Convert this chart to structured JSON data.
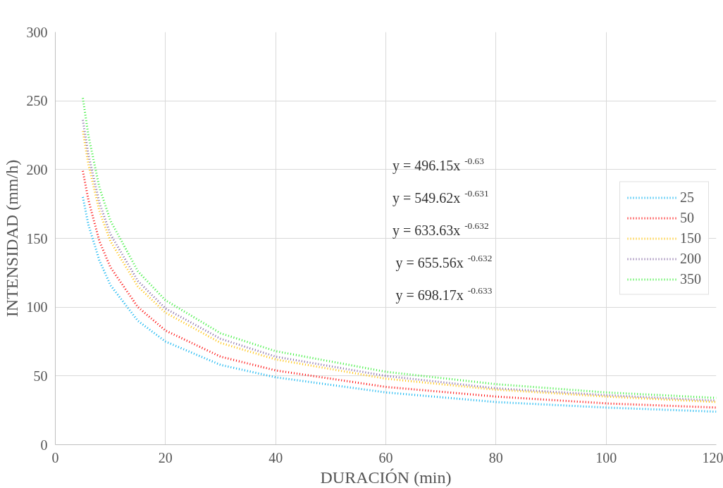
{
  "chart_data": {
    "type": "line",
    "xlabel": "DURACIÓN (min)",
    "ylabel": "INTENSIDAD (mm/h)",
    "x": [
      5,
      6,
      8,
      10,
      15,
      20,
      30,
      40,
      60,
      80,
      100,
      120
    ],
    "series": [
      {
        "name": "25",
        "color": "#00b0f0",
        "values": [
          180,
          160,
          134,
          116,
          90,
          75,
          58,
          49,
          38,
          31,
          27,
          24
        ]
      },
      {
        "name": "50",
        "color": "#ff0000",
        "values": [
          199,
          178,
          148,
          129,
          100,
          83,
          64,
          54,
          42,
          35,
          30,
          27
        ]
      },
      {
        "name": "150",
        "color": "#ffc000",
        "values": [
          228,
          204,
          170,
          148,
          115,
          96,
          74,
          62,
          48,
          40,
          35,
          31
        ]
      },
      {
        "name": "200",
        "color": "#8064a2",
        "values": [
          236,
          211,
          176,
          153,
          119,
          99,
          77,
          64,
          50,
          41,
          36,
          32
        ]
      },
      {
        "name": "350",
        "color": "#33ee33",
        "values": [
          252,
          225,
          187,
          163,
          126,
          105,
          81,
          68,
          53,
          44,
          38,
          34
        ]
      }
    ],
    "annotations": [
      "y = 496.15x$^{-0.63}$",
      "y = 549.62x$^{-0.631}$",
      "y = 633.63x$^{-0.632}$",
      "y = 655.56x$^{-0.632}$",
      "y = 698.17x$^{-0.633}$"
    ],
    "xlim": [
      0,
      120
    ],
    "xticks": [
      0,
      20,
      40,
      60,
      80,
      100,
      120
    ],
    "ylim": [
      0,
      300
    ],
    "yticks": [
      0,
      50,
      100,
      150,
      200,
      250,
      300
    ],
    "grid": true,
    "legend": "right",
    "line_style": "dotted",
    "marker": "none"
  }
}
